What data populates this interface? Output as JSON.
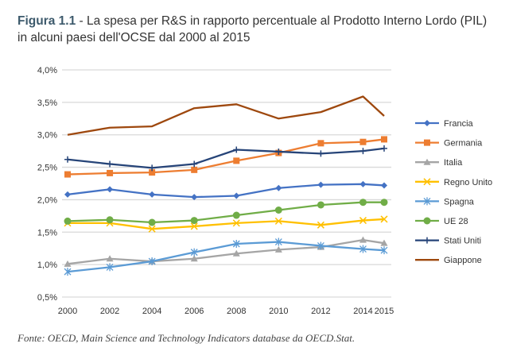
{
  "title": {
    "label": "Figura 1.1",
    "text": " - La spesa per R&S in rapporto percentuale al Prodotto Interno Lordo (PIL) in alcuni paesi dell'OCSE dal 2000 al 2015"
  },
  "source": "Fonte: OECD, Main Science and Technology Indicators database da OECD.Stat.",
  "chart_data": {
    "type": "line",
    "x": [
      2000,
      2002,
      2004,
      2006,
      2008,
      2010,
      2012,
      2014,
      2015
    ],
    "xtick_labels": [
      "2000",
      "2002",
      "2004",
      "2006",
      "2008",
      "2010",
      "2012",
      "2014",
      "2015"
    ],
    "ylim": [
      0.5,
      4.0
    ],
    "yticks": [
      0.5,
      1.0,
      1.5,
      2.0,
      2.5,
      3.0,
      3.5,
      4.0
    ],
    "ytick_labels": [
      "0,5%",
      "1,0%",
      "1,5%",
      "2,0%",
      "2,5%",
      "3,0%",
      "3,5%",
      "4,0%"
    ],
    "grid": true,
    "legend": "right",
    "series": [
      {
        "name": "Francia",
        "color": "#4472c4",
        "marker": "diamond",
        "values": [
          2.08,
          2.16,
          2.08,
          2.04,
          2.06,
          2.18,
          2.23,
          2.24,
          2.22
        ]
      },
      {
        "name": "Germania",
        "color": "#ed7d31",
        "marker": "square",
        "values": [
          2.39,
          2.41,
          2.42,
          2.46,
          2.6,
          2.72,
          2.87,
          2.89,
          2.93
        ]
      },
      {
        "name": "Italia",
        "color": "#a5a5a5",
        "marker": "triangle",
        "values": [
          1.01,
          1.09,
          1.05,
          1.09,
          1.17,
          1.23,
          1.27,
          1.38,
          1.33
        ]
      },
      {
        "name": "Regno Unito",
        "color": "#ffc000",
        "marker": "x",
        "values": [
          1.64,
          1.64,
          1.55,
          1.59,
          1.64,
          1.67,
          1.61,
          1.68,
          1.7
        ]
      },
      {
        "name": "Spagna",
        "color": "#5b9bd5",
        "marker": "star",
        "values": [
          0.89,
          0.96,
          1.05,
          1.19,
          1.32,
          1.35,
          1.29,
          1.24,
          1.22
        ]
      },
      {
        "name": "UE 28",
        "color": "#70ad47",
        "marker": "circle",
        "values": [
          1.67,
          1.69,
          1.65,
          1.68,
          1.76,
          1.84,
          1.92,
          1.96,
          1.96
        ]
      },
      {
        "name": "Stati Uniti",
        "color": "#264478",
        "marker": "plus",
        "values": [
          2.62,
          2.55,
          2.49,
          2.55,
          2.77,
          2.74,
          2.71,
          2.75,
          2.79
        ]
      },
      {
        "name": "Giappone",
        "color": "#9e480e",
        "marker": "none",
        "values": [
          3.0,
          3.11,
          3.13,
          3.41,
          3.47,
          3.25,
          3.35,
          3.59,
          3.29
        ]
      }
    ]
  }
}
